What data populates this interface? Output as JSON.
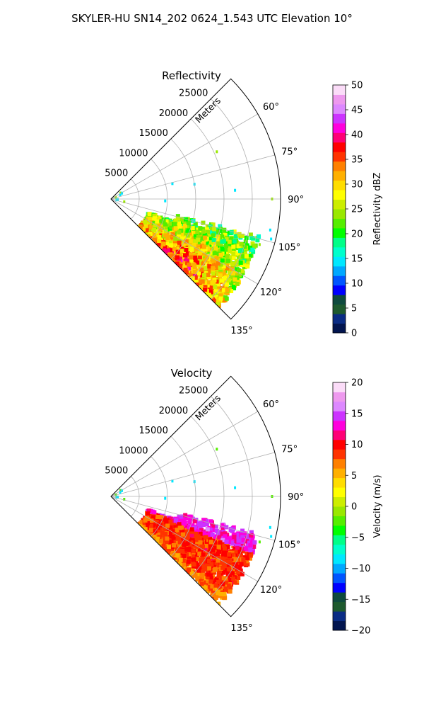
{
  "figure": {
    "suptitle": "SKYLER-HU  SN14_202  0624_1.543 UTC Elevation 10°"
  },
  "chart_data": [
    {
      "type": "heatmap",
      "projection": "polar-sector",
      "title": "Reflectivity",
      "radial_label": "Meters",
      "radial_ticks": [
        "5000",
        "10000",
        "15000",
        "20000",
        "25000"
      ],
      "radial_tick_values": [
        5000,
        10000,
        15000,
        20000,
        25000
      ],
      "rlim": [
        0,
        30000
      ],
      "angle_ticks": [
        "60°",
        "75°",
        "90°",
        "105°",
        "120°",
        "135°"
      ],
      "angle_tick_values": [
        60,
        75,
        90,
        105,
        120,
        135
      ],
      "thetalim": [
        45,
        135
      ],
      "grid": true,
      "colorbar": {
        "label": "Reflectivity dBZ",
        "range": [
          0,
          50
        ],
        "ticks": [
          "0",
          "5",
          "10",
          "15",
          "20",
          "25",
          "30",
          "35",
          "40",
          "45",
          "50"
        ],
        "tick_values": [
          0,
          5,
          10,
          15,
          20,
          25,
          30,
          35,
          40,
          45,
          50
        ],
        "colors": [
          "#02154f",
          "#0a2c84",
          "#1e5a2e",
          "#0f4a3e",
          "#0000ff",
          "#0055ff",
          "#00a8ff",
          "#00e8ff",
          "#00ffcc",
          "#00ff88",
          "#00ff00",
          "#55ee00",
          "#99e800",
          "#ccee00",
          "#ffff00",
          "#ffdd00",
          "#ffb000",
          "#ff8000",
          "#ff3300",
          "#ff0000",
          "#ff0077",
          "#ff00dd",
          "#cc33ff",
          "#dd88ff",
          "#ee99ee",
          "#fbdcf8"
        ]
      }
    },
    {
      "type": "heatmap",
      "projection": "polar-sector",
      "title": "Velocity",
      "radial_label": "Meters",
      "radial_ticks": [
        "5000",
        "10000",
        "15000",
        "20000",
        "25000"
      ],
      "radial_tick_values": [
        5000,
        10000,
        15000,
        20000,
        25000
      ],
      "rlim": [
        0,
        30000
      ],
      "angle_ticks": [
        "60°",
        "75°",
        "90°",
        "105°",
        "120°",
        "135°"
      ],
      "angle_tick_values": [
        60,
        75,
        90,
        105,
        120,
        135
      ],
      "thetalim": [
        45,
        135
      ],
      "grid": true,
      "colorbar": {
        "label": "Velocity (m/s)",
        "range": [
          -20,
          20
        ],
        "ticks": [
          "−20",
          "−15",
          "−10",
          "−5",
          "0",
          "5",
          "10",
          "15",
          "20"
        ],
        "tick_values": [
          -20,
          -15,
          -10,
          -5,
          0,
          5,
          10,
          15,
          20
        ],
        "colors": [
          "#02154f",
          "#0a2c84",
          "#1e5a2e",
          "#0f4a3e",
          "#0000ff",
          "#0055ff",
          "#00a8ff",
          "#00e8ff",
          "#00ffcc",
          "#00ff88",
          "#00ff00",
          "#55ee00",
          "#99e800",
          "#ccee00",
          "#ffff00",
          "#ffdd00",
          "#ffb000",
          "#ff8000",
          "#ff3300",
          "#ff0000",
          "#ff0077",
          "#ff00dd",
          "#cc33ff",
          "#dd88ff",
          "#ee99ee",
          "#fbdcf8"
        ]
      }
    }
  ]
}
